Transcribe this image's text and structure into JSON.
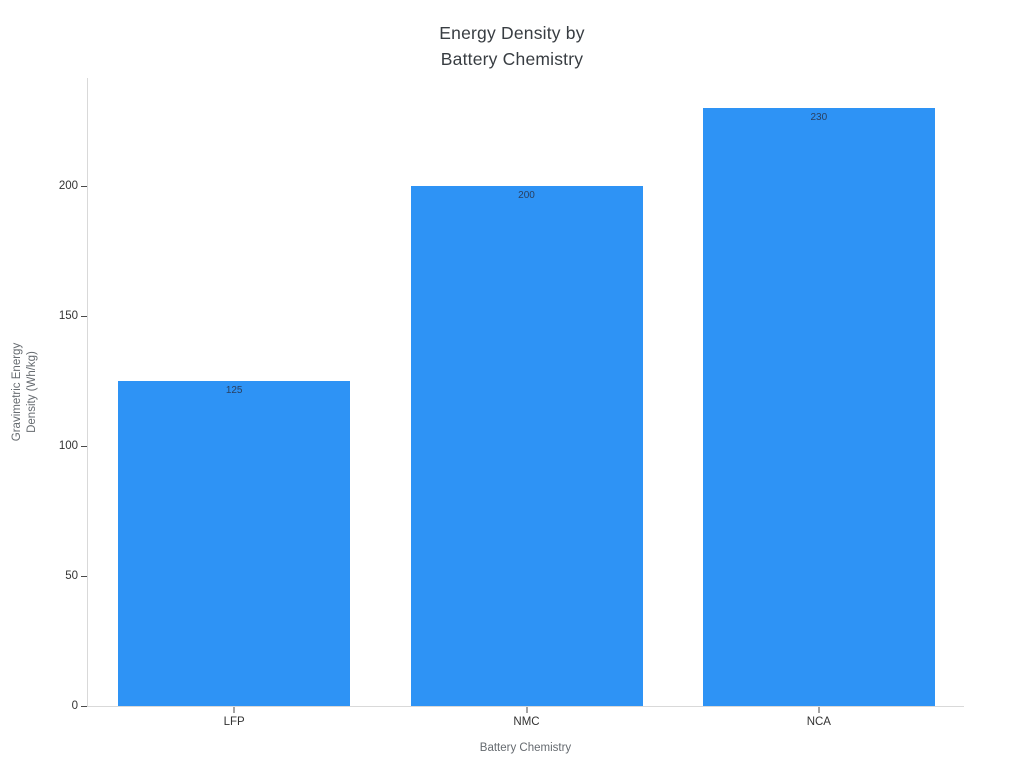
{
  "chart_data": {
    "type": "bar",
    "title": "Energy Density by\nBattery Chemistry",
    "categories": [
      "LFP",
      "NMC",
      "NCA"
    ],
    "values": [
      125,
      200,
      230
    ],
    "xlabel": "Battery Chemistry",
    "ylabel": "Gravimetric Energy\nDensity (Wh/kg)",
    "yticks": [
      0,
      50,
      100,
      150,
      200
    ],
    "ylim": [
      0,
      242
    ],
    "grid": false,
    "legend": false,
    "bar_labels_position": "inside-top",
    "colors": {
      "bar": "#2e93f5",
      "bar_label": "#2a3f5f",
      "axis_line": "#d9d9d9",
      "tick_mark": "#4a4a4a",
      "tick_label": "#333333",
      "axis_title": "#666b70",
      "title": "#383d42",
      "background": "#ffffff"
    }
  }
}
